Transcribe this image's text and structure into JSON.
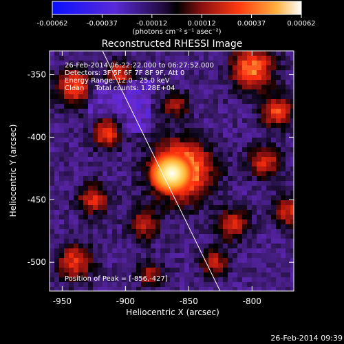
{
  "stamp": "26-Feb-2014 09:39",
  "colorbar": {
    "ticks": [
      "-0.00062",
      "-0.00037",
      "-0.00012",
      "0.00012",
      "0.00037",
      "0.00062"
    ],
    "unit_label": "(photons cm⁻² s⁻¹ asec⁻²)"
  },
  "chart_data": {
    "type": "heatmap",
    "title": "Reconstructed RHESSI Image",
    "xlabel": "Heliocentric X (arcsec)",
    "ylabel": "Heliocentric Y (arcsec)",
    "xlim": [
      -960,
      -767
    ],
    "ylim": [
      -523,
      -331
    ],
    "x_ticks": [
      "-950",
      "-900",
      "-850",
      "-800"
    ],
    "y_ticks": [
      "-350",
      "-400",
      "-450",
      "-500"
    ],
    "colormap": [
      "#1a1aff",
      "#6a2ad0",
      "#3a1a6a",
      "#000000",
      "#8a1010",
      "#ff3010",
      "#ffb040",
      "#ffffff"
    ],
    "info_lines": [
      "26-Feb-2014 06:22:22.000 to 06:27:52.000",
      "Detectors: 3F 5F 6F 7F 8F 9F, Att 0",
      "Energy Range: 12.0 - 25.0 keV",
      "Clean     Total counts: 1.28E+04"
    ],
    "peak_label": "Position of Peak = [-856,-427]",
    "peak": [
      -856,
      -427
    ]
  }
}
